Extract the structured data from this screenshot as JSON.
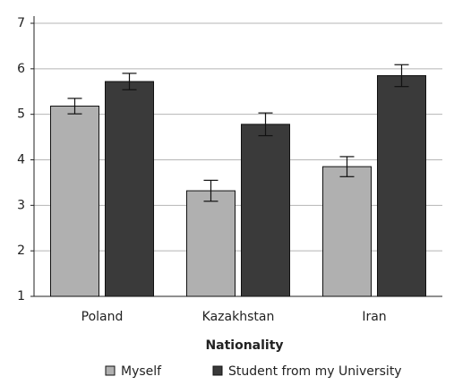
{
  "chart_data": {
    "type": "bar",
    "x_label": "Nationality",
    "categories": [
      "Poland",
      "Kazakhstan",
      "Iran"
    ],
    "series": [
      {
        "name": "Myself",
        "color": "#b0b0b0",
        "values": [
          5.18,
          3.32,
          3.85
        ],
        "errors": [
          0.17,
          0.23,
          0.22
        ]
      },
      {
        "name": "Student from my University",
        "color": "#3a3a3a",
        "values": [
          5.72,
          4.78,
          5.85
        ],
        "errors": [
          0.18,
          0.25,
          0.24
        ]
      }
    ],
    "ylim": [
      1,
      7
    ],
    "yticks": [
      1,
      2,
      3,
      4,
      5,
      6,
      7
    ],
    "grid": true,
    "legend": "bottom"
  }
}
